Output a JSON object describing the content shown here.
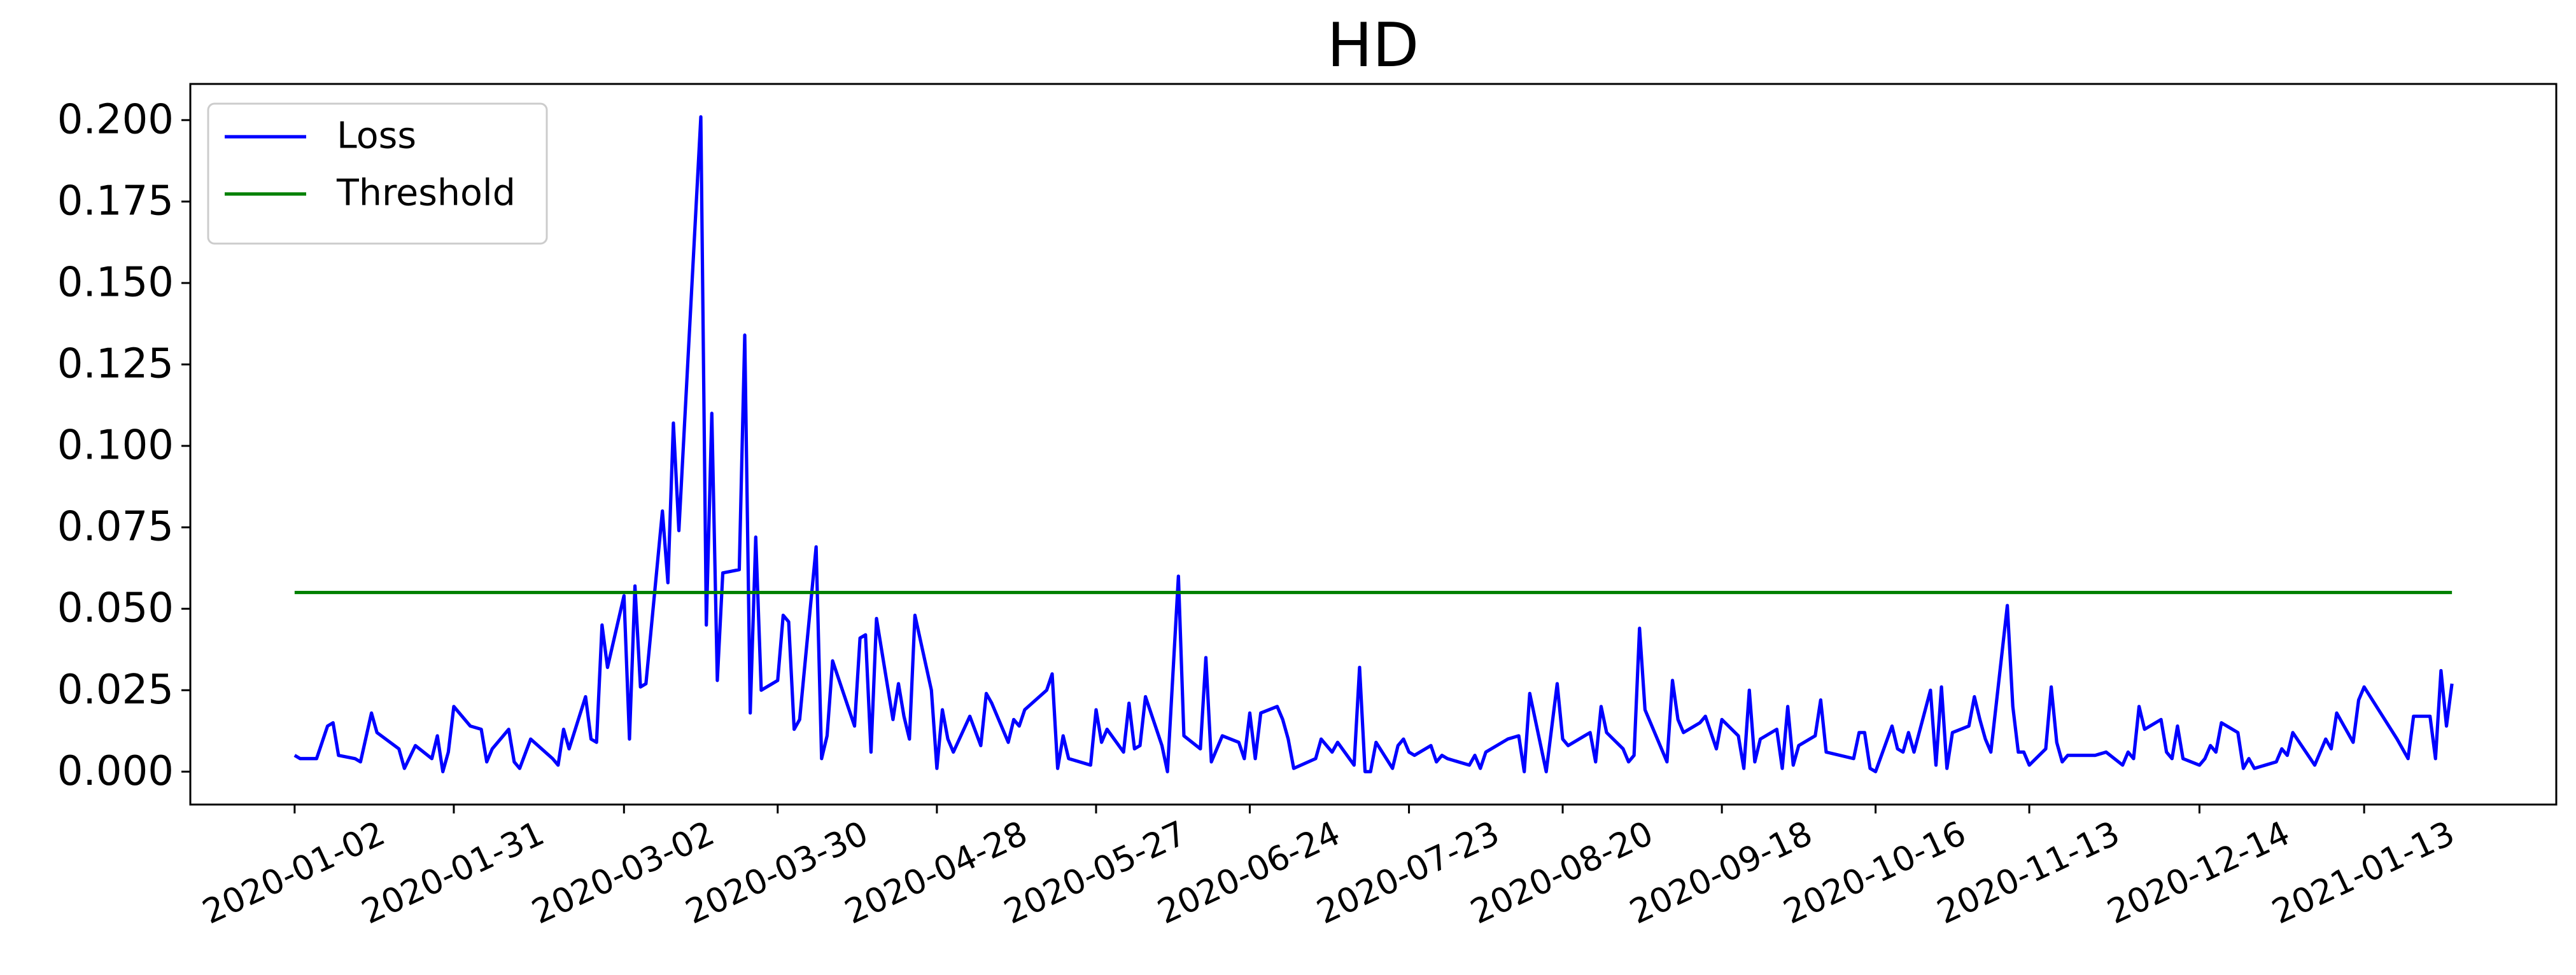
{
  "chart_data": {
    "type": "line",
    "title": "HD",
    "xlim": [
      "2019-12-14",
      "2021-02-17"
    ],
    "xticks": [
      "2020-01-02",
      "2020-01-31",
      "2020-03-02",
      "2020-03-30",
      "2020-04-28",
      "2020-05-27",
      "2020-06-24",
      "2020-07-23",
      "2020-08-20",
      "2020-09-18",
      "2020-10-16",
      "2020-11-13",
      "2020-12-14",
      "2021-01-13"
    ],
    "ylim": [
      -0.0101,
      0.2111
    ],
    "yticks": [
      {
        "value": 0,
        "label": "0.000"
      },
      {
        "value": 0.025,
        "label": "0.025"
      },
      {
        "value": 0.05,
        "label": "0.050"
      },
      {
        "value": 0.075,
        "label": "0.075"
      },
      {
        "value": 0.1,
        "label": "0.100"
      },
      {
        "value": 0.125,
        "label": "0.125"
      },
      {
        "value": 0.15,
        "label": "0.150"
      },
      {
        "value": 0.175,
        "label": "0.175"
      },
      {
        "value": 0.2,
        "label": "0.200"
      }
    ],
    "grid": false,
    "legend": "upper left",
    "series": [
      {
        "name": "Loss",
        "color": "#0000ff",
        "x": [
          "2020-01-02",
          "2020-01-03",
          "2020-01-06",
          "2020-01-08",
          "2020-01-09",
          "2020-01-10",
          "2020-01-13",
          "2020-01-14",
          "2020-01-16",
          "2020-01-17",
          "2020-01-21",
          "2020-01-22",
          "2020-01-24",
          "2020-01-27",
          "2020-01-28",
          "2020-01-29",
          "2020-01-30",
          "2020-01-31",
          "2020-02-03",
          "2020-02-05",
          "2020-02-06",
          "2020-02-07",
          "2020-02-10",
          "2020-02-11",
          "2020-02-12",
          "2020-02-14",
          "2020-02-18",
          "2020-02-19",
          "2020-02-20",
          "2020-02-21",
          "2020-02-24",
          "2020-02-25",
          "2020-02-26",
          "2020-02-27",
          "2020-02-28",
          "2020-03-02",
          "2020-03-03",
          "2020-03-04",
          "2020-03-05",
          "2020-03-06",
          "2020-03-09",
          "2020-03-10",
          "2020-03-11",
          "2020-03-12",
          "2020-03-16",
          "2020-03-17",
          "2020-03-18",
          "2020-03-19",
          "2020-03-20",
          "2020-03-23",
          "2020-03-24",
          "2020-03-25",
          "2020-03-26",
          "2020-03-27",
          "2020-03-30",
          "2020-03-31",
          "2020-04-01",
          "2020-04-02",
          "2020-04-03",
          "2020-04-06",
          "2020-04-07",
          "2020-04-08",
          "2020-04-09",
          "2020-04-13",
          "2020-04-14",
          "2020-04-15",
          "2020-04-16",
          "2020-04-17",
          "2020-04-20",
          "2020-04-21",
          "2020-04-22",
          "2020-04-23",
          "2020-04-24",
          "2020-04-27",
          "2020-04-28",
          "2020-04-29",
          "2020-04-30",
          "2020-05-01",
          "2020-05-04",
          "2020-05-06",
          "2020-05-07",
          "2020-05-08",
          "2020-05-11",
          "2020-05-12",
          "2020-05-13",
          "2020-05-14",
          "2020-05-18",
          "2020-05-19",
          "2020-05-20",
          "2020-05-21",
          "2020-05-22",
          "2020-05-26",
          "2020-05-27",
          "2020-05-28",
          "2020-05-29",
          "2020-06-01",
          "2020-06-02",
          "2020-06-03",
          "2020-06-04",
          "2020-06-05",
          "2020-06-08",
          "2020-06-09",
          "2020-06-11",
          "2020-06-12",
          "2020-06-15",
          "2020-06-16",
          "2020-06-17",
          "2020-06-19",
          "2020-06-22",
          "2020-06-23",
          "2020-06-24",
          "2020-06-25",
          "2020-06-26",
          "2020-06-29",
          "2020-06-30",
          "2020-07-01",
          "2020-07-02",
          "2020-07-06",
          "2020-07-07",
          "2020-07-09",
          "2020-07-10",
          "2020-07-13",
          "2020-07-14",
          "2020-07-15",
          "2020-07-16",
          "2020-07-17",
          "2020-07-20",
          "2020-07-21",
          "2020-07-22",
          "2020-07-23",
          "2020-07-24",
          "2020-07-27",
          "2020-07-28",
          "2020-07-29",
          "2020-07-30",
          "2020-08-03",
          "2020-08-04",
          "2020-08-05",
          "2020-08-06",
          "2020-08-10",
          "2020-08-12",
          "2020-08-13",
          "2020-08-14",
          "2020-08-17",
          "2020-08-19",
          "2020-08-20",
          "2020-08-21",
          "2020-08-24",
          "2020-08-25",
          "2020-08-26",
          "2020-08-27",
          "2020-08-28",
          "2020-08-31",
          "2020-09-01",
          "2020-09-02",
          "2020-09-03",
          "2020-09-04",
          "2020-09-08",
          "2020-09-09",
          "2020-09-10",
          "2020-09-11",
          "2020-09-14",
          "2020-09-15",
          "2020-09-16",
          "2020-09-17",
          "2020-09-18",
          "2020-09-21",
          "2020-09-22",
          "2020-09-23",
          "2020-09-24",
          "2020-09-25",
          "2020-09-28",
          "2020-09-29",
          "2020-09-30",
          "2020-10-01",
          "2020-10-02",
          "2020-10-05",
          "2020-10-06",
          "2020-10-07",
          "2020-10-12",
          "2020-10-13",
          "2020-10-14",
          "2020-10-15",
          "2020-10-16",
          "2020-10-19",
          "2020-10-20",
          "2020-10-21",
          "2020-10-22",
          "2020-10-23",
          "2020-10-26",
          "2020-10-27",
          "2020-10-28",
          "2020-10-29",
          "2020-10-30",
          "2020-11-02",
          "2020-11-03",
          "2020-11-04",
          "2020-11-05",
          "2020-11-06",
          "2020-11-09",
          "2020-11-10",
          "2020-11-11",
          "2020-11-12",
          "2020-11-13",
          "2020-11-16",
          "2020-11-17",
          "2020-11-18",
          "2020-11-19",
          "2020-11-20",
          "2020-11-23",
          "2020-11-24",
          "2020-11-25",
          "2020-11-27",
          "2020-11-30",
          "2020-12-01",
          "2020-12-02",
          "2020-12-03",
          "2020-12-04",
          "2020-12-07",
          "2020-12-08",
          "2020-12-09",
          "2020-12-10",
          "2020-12-11",
          "2020-12-14",
          "2020-12-15",
          "2020-12-16",
          "2020-12-17",
          "2020-12-18",
          "2020-12-21",
          "2020-12-22",
          "2020-12-23",
          "2020-12-24",
          "2020-12-28",
          "2020-12-29",
          "2020-12-30",
          "2020-12-31",
          "2021-01-04",
          "2021-01-05",
          "2021-01-06",
          "2021-01-07",
          "2021-01-08",
          "2021-01-11",
          "2021-01-12",
          "2021-01-13",
          "2021-01-19",
          "2021-01-21",
          "2021-01-22",
          "2021-01-25",
          "2021-01-26",
          "2021-01-27",
          "2021-01-28",
          "2021-01-29"
        ],
        "values": [
          0.005,
          0.004,
          0.004,
          0.014,
          0.015,
          0.005,
          0.004,
          0.003,
          0.018,
          0.012,
          0.007,
          0.001,
          0.008,
          0.004,
          0.011,
          0,
          0.006,
          0.02,
          0.014,
          0.013,
          0.003,
          0.007,
          0.013,
          0.003,
          0.001,
          0.01,
          0.004,
          0.002,
          0.013,
          0.007,
          0.023,
          0.01,
          0.009,
          0.045,
          0.032,
          0.054,
          0.01,
          0.057,
          0.026,
          0.027,
          0.08,
          0.058,
          0.107,
          0.074,
          0.201,
          0.045,
          0.11,
          0.028,
          0.061,
          0.062,
          0.134,
          0.018,
          0.072,
          0.025,
          0.028,
          0.048,
          0.046,
          0.013,
          0.016,
          0.069,
          0.004,
          0.011,
          0.034,
          0.014,
          0.041,
          0.042,
          0.006,
          0.047,
          0.016,
          0.027,
          0.017,
          0.01,
          0.048,
          0.025,
          0.001,
          0.019,
          0.01,
          0.006,
          0.017,
          0.008,
          0.024,
          0.021,
          0.009,
          0.016,
          0.014,
          0.019,
          0.025,
          0.03,
          0.001,
          0.011,
          0.004,
          0.002,
          0.019,
          0.009,
          0.013,
          0.006,
          0.021,
          0.007,
          0.008,
          0.023,
          0.008,
          0,
          0.06,
          0.011,
          0.007,
          0.035,
          0.003,
          0.011,
          0.009,
          0.004,
          0.018,
          0.004,
          0.018,
          0.02,
          0.016,
          0.01,
          0.001,
          0.004,
          0.01,
          0.006,
          0.009,
          0.002,
          0.032,
          0,
          0,
          0.009,
          0.001,
          0.008,
          0.01,
          0.006,
          0.005,
          0.008,
          0.003,
          0.005,
          0.004,
          0.002,
          0.005,
          0.001,
          0.006,
          0.01,
          0.011,
          0,
          0.024,
          0,
          0.027,
          0.01,
          0.008,
          0.011,
          0.012,
          0.003,
          0.02,
          0.012,
          0.007,
          0.003,
          0.005,
          0.044,
          0.019,
          0.003,
          0.028,
          0.016,
          0.012,
          0.015,
          0.017,
          0.012,
          0.007,
          0.016,
          0.011,
          0.001,
          0.025,
          0.003,
          0.01,
          0.013,
          0.001,
          0.02,
          0.002,
          0.008,
          0.011,
          0.022,
          0.006,
          0.004,
          0.012,
          0.012,
          0.001,
          0,
          0.014,
          0.007,
          0.006,
          0.012,
          0.006,
          0.025,
          0.002,
          0.026,
          0.001,
          0.012,
          0.014,
          0.023,
          0.016,
          0.01,
          0.006,
          0.051,
          0.02,
          0.006,
          0.006,
          0.002,
          0.007,
          0.026,
          0.009,
          0.003,
          0.005,
          0.005,
          0.005,
          0.005,
          0.006,
          0.002,
          0.006,
          0.004,
          0.02,
          0.013,
          0.016,
          0.006,
          0.004,
          0.014,
          0.004,
          0.002,
          0.004,
          0.008,
          0.006,
          0.015,
          0.012,
          0.001,
          0.004,
          0.001,
          0.003,
          0.007,
          0.005,
          0.012,
          0.002,
          0.006,
          0.01,
          0.007,
          0.018,
          0.009,
          0.022,
          0.026,
          0.01,
          0.004,
          0.017,
          0.017,
          0.004,
          0.031,
          0.014,
          0.027
        ]
      },
      {
        "name": "Threshold",
        "color": "#008000",
        "x": [
          "2020-01-02",
          "2021-01-29"
        ],
        "values": [
          0.055,
          0.055
        ]
      }
    ]
  }
}
